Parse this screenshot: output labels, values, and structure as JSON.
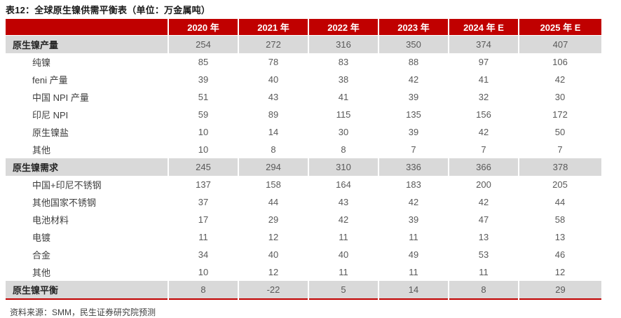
{
  "title": "表12：全球原生镍供需平衡表（单位：万金属吨）",
  "source_note": "资料来源：SMM，民生证券研究院预测",
  "colors": {
    "header_bg": "#C00000",
    "accent_red": "#C00000",
    "band_bg": "#D9D9D9"
  },
  "table": {
    "columns": [
      "2020 年",
      "2021 年",
      "2022 年",
      "2023 年",
      "2024 年 E",
      "2025 年 E"
    ],
    "rows": [
      {
        "label": "原生镍产量",
        "category": true,
        "values": [
          254,
          272,
          316,
          350,
          374,
          407
        ]
      },
      {
        "label": "纯镍",
        "category": false,
        "values": [
          85,
          78,
          83,
          88,
          97,
          106
        ]
      },
      {
        "label": "feni 产量",
        "category": false,
        "values": [
          39,
          40,
          38,
          42,
          41,
          42
        ]
      },
      {
        "label": "中国 NPI 产量",
        "category": false,
        "values": [
          51,
          43,
          41,
          39,
          32,
          30
        ]
      },
      {
        "label": "印尼 NPI",
        "category": false,
        "values": [
          59,
          89,
          115,
          135,
          156,
          172
        ]
      },
      {
        "label": "原生镍盐",
        "category": false,
        "values": [
          10,
          14,
          30,
          39,
          42,
          50
        ]
      },
      {
        "label": "其他",
        "category": false,
        "values": [
          10,
          8,
          8,
          7,
          7,
          7
        ]
      },
      {
        "label": "原生镍需求",
        "category": true,
        "values": [
          245,
          294,
          310,
          336,
          366,
          378
        ]
      },
      {
        "label": "中国+印尼不锈钢",
        "category": false,
        "values": [
          137,
          158,
          164,
          183,
          200,
          205
        ]
      },
      {
        "label": "其他国家不锈钢",
        "category": false,
        "values": [
          37,
          44,
          43,
          42,
          42,
          44
        ]
      },
      {
        "label": "电池材料",
        "category": false,
        "values": [
          17,
          29,
          42,
          39,
          47,
          58
        ]
      },
      {
        "label": "电镀",
        "category": false,
        "values": [
          11,
          12,
          11,
          11,
          13,
          13
        ]
      },
      {
        "label": "合金",
        "category": false,
        "values": [
          34,
          40,
          40,
          49,
          53,
          46
        ]
      },
      {
        "label": "其他",
        "category": false,
        "values": [
          10,
          12,
          11,
          11,
          11,
          12
        ]
      },
      {
        "label": "原生镍平衡",
        "category": true,
        "values": [
          8,
          -22,
          5,
          14,
          8,
          29
        ]
      }
    ]
  }
}
